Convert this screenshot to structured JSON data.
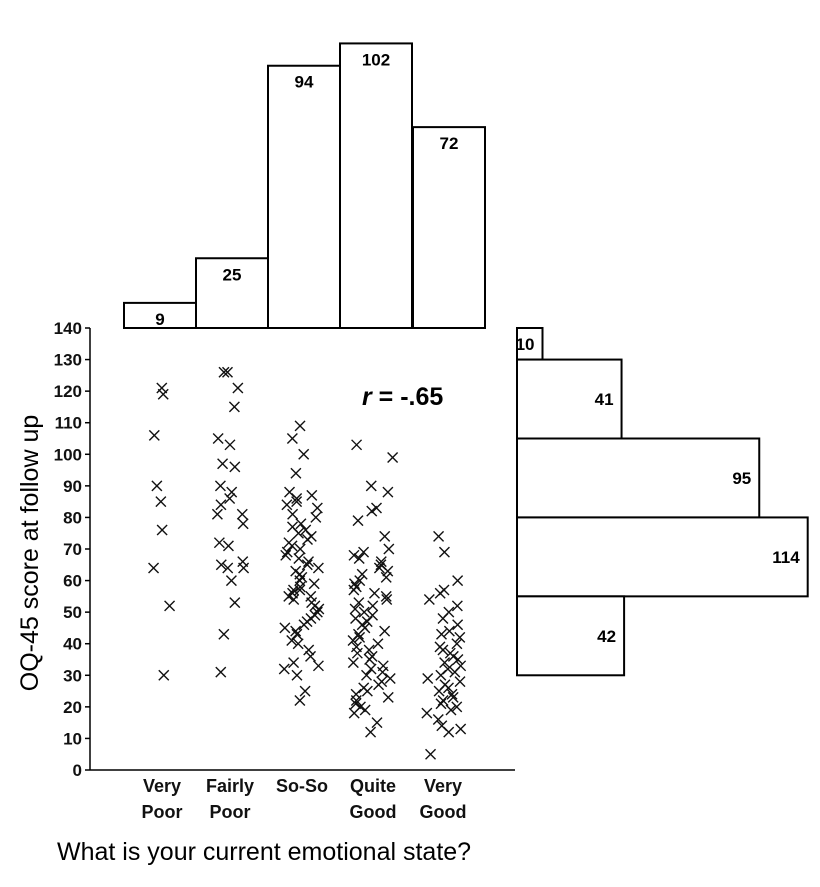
{
  "chart_data": [
    {
      "type": "scatter",
      "xlabel": "What is your current emotional state?",
      "ylabel": "OQ-45 score at follow up",
      "ylim": [
        0,
        140
      ],
      "yticks": [
        "0",
        "10",
        "20",
        "30",
        "40",
        "50",
        "60",
        "70",
        "80",
        "90",
        "100",
        "110",
        "120",
        "130",
        "140"
      ],
      "categories": [
        {
          "line1": "Very",
          "line2": "Poor"
        },
        {
          "line1": "Fairly",
          "line2": "Poor"
        },
        {
          "line1": "So-So",
          "line2": ""
        },
        {
          "line1": "Quite",
          "line2": "Good"
        },
        {
          "line1": "Very",
          "line2": "Good"
        }
      ],
      "annotation": {
        "prefix": "r",
        "text": " = -.65"
      },
      "points": [
        [
          0,
          121
        ],
        [
          0,
          119
        ],
        [
          0,
          106
        ],
        [
          0,
          90
        ],
        [
          0,
          85
        ],
        [
          0,
          76
        ],
        [
          0,
          64
        ],
        [
          0,
          52
        ],
        [
          0,
          30
        ],
        [
          1,
          126
        ],
        [
          1,
          126
        ],
        [
          1,
          121
        ],
        [
          1,
          115
        ],
        [
          1,
          105
        ],
        [
          1,
          103
        ],
        [
          1,
          97
        ],
        [
          1,
          96
        ],
        [
          1,
          90
        ],
        [
          1,
          88
        ],
        [
          1,
          86
        ],
        [
          1,
          84
        ],
        [
          1,
          81
        ],
        [
          1,
          81
        ],
        [
          1,
          78
        ],
        [
          1,
          72
        ],
        [
          1,
          71
        ],
        [
          1,
          66
        ],
        [
          1,
          65
        ],
        [
          1,
          64
        ],
        [
          1,
          60
        ],
        [
          1,
          53
        ],
        [
          1,
          43
        ],
        [
          1,
          31
        ],
        [
          1,
          64
        ],
        [
          2,
          109
        ],
        [
          2,
          105
        ],
        [
          2,
          100
        ],
        [
          2,
          94
        ],
        [
          2,
          88
        ],
        [
          2,
          87
        ],
        [
          2,
          86
        ],
        [
          2,
          85
        ],
        [
          2,
          84
        ],
        [
          2,
          83
        ],
        [
          2,
          81
        ],
        [
          2,
          80
        ],
        [
          2,
          78
        ],
        [
          2,
          77
        ],
        [
          2,
          76
        ],
        [
          2,
          75
        ],
        [
          2,
          74
        ],
        [
          2,
          73
        ],
        [
          2,
          72
        ],
        [
          2,
          71
        ],
        [
          2,
          70
        ],
        [
          2,
          69
        ],
        [
          2,
          68
        ],
        [
          2,
          67
        ],
        [
          2,
          66
        ],
        [
          2,
          65
        ],
        [
          2,
          64
        ],
        [
          2,
          63
        ],
        [
          2,
          62
        ],
        [
          2,
          61
        ],
        [
          2,
          60
        ],
        [
          2,
          59
        ],
        [
          2,
          58
        ],
        [
          2,
          57
        ],
        [
          2,
          57
        ],
        [
          2,
          56
        ],
        [
          2,
          55
        ],
        [
          2,
          55
        ],
        [
          2,
          54
        ],
        [
          2,
          53
        ],
        [
          2,
          52
        ],
        [
          2,
          51
        ],
        [
          2,
          50
        ],
        [
          2,
          49
        ],
        [
          2,
          48
        ],
        [
          2,
          47
        ],
        [
          2,
          46
        ],
        [
          2,
          45
        ],
        [
          2,
          44
        ],
        [
          2,
          43
        ],
        [
          2,
          41
        ],
        [
          2,
          40
        ],
        [
          2,
          38
        ],
        [
          2,
          36
        ],
        [
          2,
          34
        ],
        [
          2,
          33
        ],
        [
          2,
          32
        ],
        [
          2,
          30
        ],
        [
          2,
          25
        ],
        [
          2,
          22
        ],
        [
          3,
          103
        ],
        [
          3,
          99
        ],
        [
          3,
          90
        ],
        [
          3,
          88
        ],
        [
          3,
          83
        ],
        [
          3,
          82
        ],
        [
          3,
          79
        ],
        [
          3,
          74
        ],
        [
          3,
          70
        ],
        [
          3,
          69
        ],
        [
          3,
          68
        ],
        [
          3,
          67
        ],
        [
          3,
          66
        ],
        [
          3,
          65
        ],
        [
          3,
          64
        ],
        [
          3,
          63
        ],
        [
          3,
          62
        ],
        [
          3,
          61
        ],
        [
          3,
          60
        ],
        [
          3,
          59
        ],
        [
          3,
          58
        ],
        [
          3,
          57
        ],
        [
          3,
          56
        ],
        [
          3,
          55
        ],
        [
          3,
          54
        ],
        [
          3,
          53
        ],
        [
          3,
          52
        ],
        [
          3,
          51
        ],
        [
          3,
          50
        ],
        [
          3,
          49
        ],
        [
          3,
          48
        ],
        [
          3,
          47
        ],
        [
          3,
          46
        ],
        [
          3,
          45
        ],
        [
          3,
          44
        ],
        [
          3,
          43
        ],
        [
          3,
          42
        ],
        [
          3,
          41
        ],
        [
          3,
          40
        ],
        [
          3,
          39
        ],
        [
          3,
          38
        ],
        [
          3,
          37
        ],
        [
          3,
          36
        ],
        [
          3,
          35
        ],
        [
          3,
          34
        ],
        [
          3,
          33
        ],
        [
          3,
          32
        ],
        [
          3,
          31
        ],
        [
          3,
          30
        ],
        [
          3,
          29
        ],
        [
          3,
          28
        ],
        [
          3,
          27
        ],
        [
          3,
          26
        ],
        [
          3,
          25
        ],
        [
          3,
          24
        ],
        [
          3,
          23
        ],
        [
          3,
          22
        ],
        [
          3,
          21
        ],
        [
          3,
          20
        ],
        [
          3,
          19
        ],
        [
          3,
          18
        ],
        [
          3,
          15
        ],
        [
          3,
          12
        ],
        [
          4,
          74
        ],
        [
          4,
          69
        ],
        [
          4,
          60
        ],
        [
          4,
          57
        ],
        [
          4,
          56
        ],
        [
          4,
          54
        ],
        [
          4,
          52
        ],
        [
          4,
          50
        ],
        [
          4,
          48
        ],
        [
          4,
          46
        ],
        [
          4,
          44
        ],
        [
          4,
          43
        ],
        [
          4,
          42
        ],
        [
          4,
          40
        ],
        [
          4,
          39
        ],
        [
          4,
          38
        ],
        [
          4,
          37
        ],
        [
          4,
          36
        ],
        [
          4,
          35
        ],
        [
          4,
          34
        ],
        [
          4,
          33
        ],
        [
          4,
          32
        ],
        [
          4,
          31
        ],
        [
          4,
          30
        ],
        [
          4,
          29
        ],
        [
          4,
          28
        ],
        [
          4,
          27
        ],
        [
          4,
          26
        ],
        [
          4,
          25
        ],
        [
          4,
          24
        ],
        [
          4,
          23
        ],
        [
          4,
          22
        ],
        [
          4,
          21
        ],
        [
          4,
          20
        ],
        [
          4,
          19
        ],
        [
          4,
          18
        ],
        [
          4,
          16
        ],
        [
          4,
          14
        ],
        [
          4,
          13
        ],
        [
          4,
          12
        ],
        [
          4,
          5
        ]
      ]
    },
    {
      "type": "bar",
      "orientation": "vertical",
      "categories": [
        "Very Poor",
        "Fairly Poor",
        "So-So",
        "Quite Good",
        "Very Good"
      ],
      "values": [
        9,
        25,
        94,
        102,
        72
      ],
      "labels": [
        "9",
        "25",
        "94",
        "102",
        "72"
      ]
    },
    {
      "type": "bar",
      "orientation": "horizontal",
      "bins": [
        [
          130,
          140
        ],
        [
          105,
          130
        ],
        [
          80,
          105
        ],
        [
          55,
          80
        ],
        [
          30,
          55
        ]
      ],
      "values": [
        10,
        41,
        95,
        114,
        42
      ],
      "labels": [
        "10",
        "41",
        "95",
        "114",
        "42"
      ]
    }
  ]
}
